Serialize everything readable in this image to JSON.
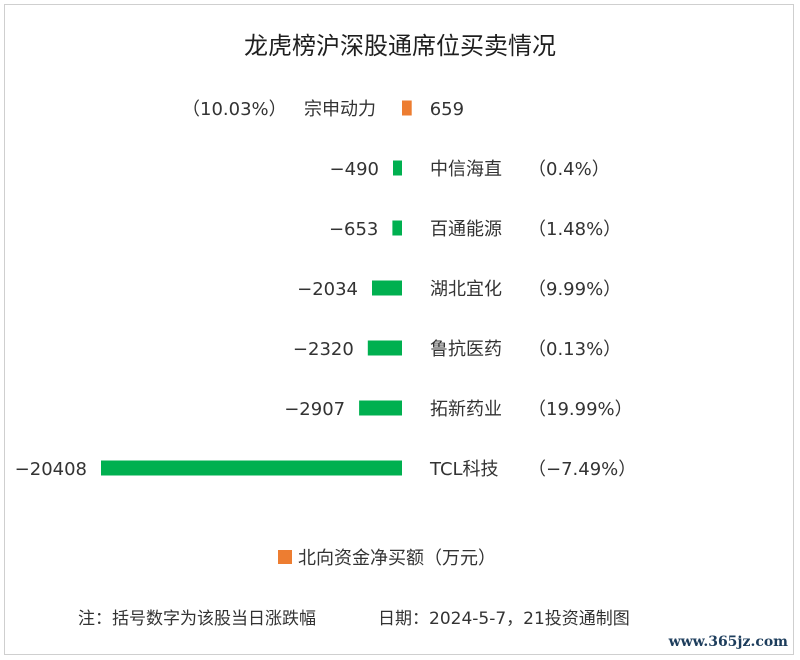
{
  "chart_data": {
    "type": "bar",
    "orientation": "horizontal",
    "title": "龙虎榜沪深股通席位买卖情况",
    "legend_label": "北向资金净买额（万元）",
    "categories": [
      "宗申动力",
      "中信海直",
      "百通能源",
      "湖北宜化",
      "鲁抗医药",
      "拓新药业",
      "TCL科技"
    ],
    "values": [
      659,
      -490,
      -653,
      -2034,
      -2320,
      -2907,
      -20408
    ],
    "changes": [
      "（10.03%）",
      "（0.4%）",
      "（1.48%）",
      "（9.99%）",
      "（0.13%）",
      "（19.99%）",
      "（-7.49%）"
    ],
    "colors": {
      "positive": "#ED7D31",
      "negative": "#00B050"
    },
    "xlim": [
      -20408,
      659
    ],
    "grid": false,
    "legend_position": "bottom"
  },
  "footer": {
    "note": "注：括号数字为该股当日涨跌幅",
    "source": "日期：2024-5-7，21投资通制图"
  },
  "watermark": "www.365jz.com"
}
